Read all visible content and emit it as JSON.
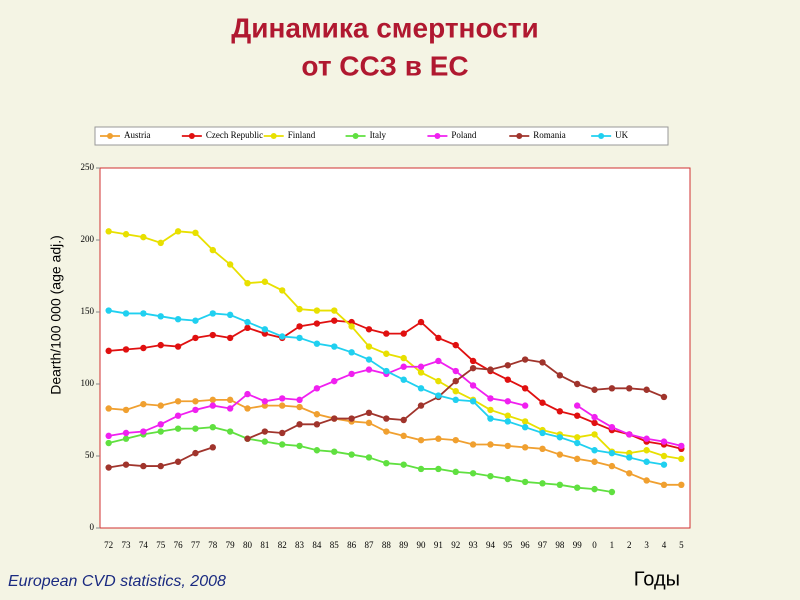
{
  "chart_data": {
    "type": "line",
    "title": [
      "Динамика смертности",
      "от ССЗ в ЕС"
    ],
    "y_label": "Dearth/100 000 (age adj.)",
    "x_label": "Годы",
    "source": "European CVD statistics, 2008",
    "categories": [
      "72",
      "73",
      "74",
      "75",
      "76",
      "77",
      "78",
      "79",
      "80",
      "81",
      "82",
      "83",
      "84",
      "85",
      "86",
      "87",
      "88",
      "89",
      "90",
      "91",
      "92",
      "93",
      "94",
      "95",
      "96",
      "97",
      "98",
      "99",
      "0",
      "1",
      "2",
      "3",
      "4",
      "5"
    ],
    "ylim": [
      0,
      250
    ],
    "yticks": [
      0,
      50,
      100,
      150,
      200,
      250
    ],
    "legend": "top",
    "series": [
      {
        "name": "Austria",
        "color": "#f0a030",
        "values": [
          83,
          82,
          86,
          85,
          88,
          88,
          89,
          89,
          83,
          85,
          85,
          84,
          79,
          76,
          74,
          73,
          67,
          64,
          61,
          62,
          61,
          58,
          58,
          57,
          56,
          55,
          51,
          48,
          46,
          43,
          38,
          33,
          30,
          30
        ]
      },
      {
        "name": "Czech Republic",
        "color": "#e01010",
        "values": [
          123,
          124,
          125,
          127,
          126,
          132,
          134,
          132,
          139,
          135,
          132,
          140,
          142,
          144,
          143,
          138,
          135,
          135,
          143,
          132,
          127,
          116,
          109,
          103,
          97,
          87,
          81,
          78,
          73,
          68,
          65,
          60,
          58,
          55
        ]
      },
      {
        "name": "Finland",
        "color": "#e8e000",
        "values": [
          206,
          204,
          202,
          198,
          206,
          205,
          193,
          183,
          170,
          171,
          165,
          152,
          151,
          151,
          140,
          126,
          121,
          118,
          108,
          102,
          95,
          89,
          82,
          78,
          74,
          68,
          65,
          63,
          65,
          53,
          52,
          54,
          50,
          48
        ]
      },
      {
        "name": "Italy",
        "color": "#60e040",
        "values": [
          59,
          62,
          65,
          67,
          69,
          69,
          70,
          67,
          62,
          60,
          58,
          57,
          54,
          53,
          51,
          49,
          45,
          44,
          41,
          41,
          39,
          38,
          36,
          34,
          32,
          31,
          30,
          28,
          27,
          25,
          null,
          null,
          null,
          null
        ]
      },
      {
        "name": "Poland",
        "color": "#f020f0",
        "values": [
          64,
          66,
          67,
          72,
          78,
          82,
          85,
          83,
          93,
          88,
          90,
          89,
          97,
          102,
          107,
          110,
          107,
          112,
          112,
          116,
          109,
          99,
          90,
          88,
          85,
          null,
          null,
          85,
          77,
          70,
          65,
          62,
          60,
          57
        ]
      },
      {
        "name": "Romania",
        "color": "#a0342c",
        "values": [
          42,
          44,
          43,
          43,
          46,
          52,
          56,
          null,
          62,
          67,
          66,
          72,
          72,
          76,
          76,
          80,
          76,
          75,
          85,
          91,
          102,
          111,
          110,
          113,
          117,
          115,
          106,
          100,
          96,
          97,
          97,
          96,
          91,
          null
        ]
      },
      {
        "name": "UK",
        "color": "#20d0f0",
        "values": [
          151,
          149,
          149,
          147,
          145,
          144,
          149,
          148,
          143,
          138,
          133,
          132,
          128,
          126,
          122,
          117,
          109,
          103,
          97,
          92,
          89,
          88,
          76,
          74,
          70,
          66,
          63,
          59,
          54,
          52,
          49,
          46,
          44,
          null
        ]
      }
    ]
  }
}
